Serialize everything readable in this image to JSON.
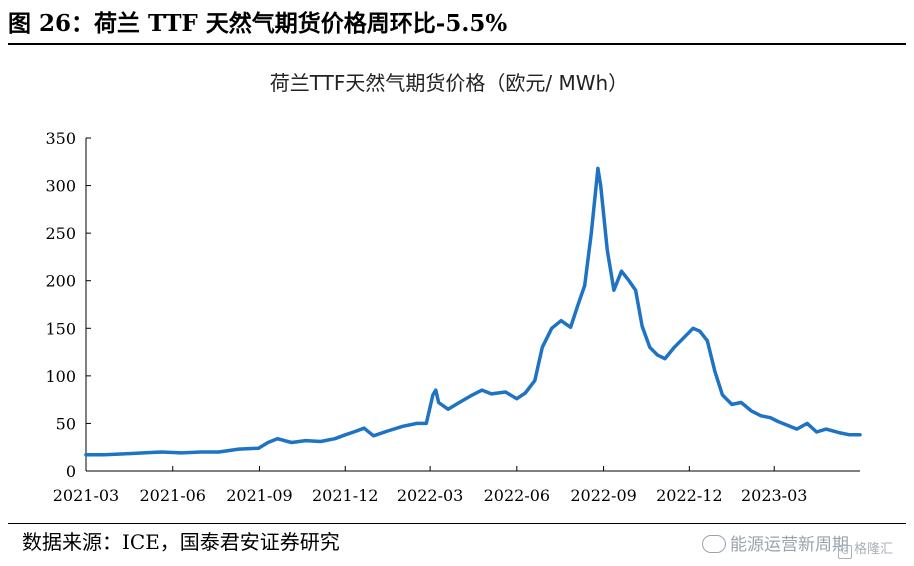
{
  "figure": {
    "title": "图 26：荷兰 TTF 天然气期货价格周环比-5.5%",
    "source": "数据来源：ICE，国泰君安证券研究",
    "watermark": "能源运营新周期",
    "watermark2": "格隆汇"
  },
  "colors": {
    "line": "#1f73c4",
    "axis": "#000000"
  },
  "chart_data": {
    "type": "line",
    "title": "荷兰TTF天然气期货价格（欧元/ MWh）",
    "xlabel": "",
    "ylabel": "",
    "ylim": [
      0,
      350
    ],
    "yticks": [
      0,
      50,
      100,
      150,
      200,
      250,
      300,
      350
    ],
    "xlim": [
      "2021-03-01",
      "2023-05-31"
    ],
    "xticks": [
      "2021-03",
      "2021-06",
      "2021-09",
      "2021-12",
      "2022-03",
      "2022-06",
      "2022-09",
      "2022-12",
      "2023-03"
    ],
    "grid": false,
    "legend": "none",
    "series": [
      {
        "x": [
          "2021-03-01",
          "2021-03-20",
          "2021-04-10",
          "2021-05-01",
          "2021-05-20",
          "2021-06-10",
          "2021-07-01",
          "2021-07-20",
          "2021-08-10",
          "2021-08-31",
          "2021-09-10",
          "2021-09-20",
          "2021-10-05",
          "2021-10-20",
          "2021-11-05",
          "2021-11-20",
          "2021-12-01",
          "2021-12-10",
          "2021-12-21",
          "2021-12-31",
          "2022-01-15",
          "2022-01-31",
          "2022-02-15",
          "2022-02-25",
          "2022-03-04",
          "2022-03-07",
          "2022-03-10",
          "2022-03-20",
          "2022-04-01",
          "2022-04-15",
          "2022-04-25",
          "2022-05-05",
          "2022-05-20",
          "2022-06-01",
          "2022-06-10",
          "2022-06-20",
          "2022-06-28",
          "2022-07-08",
          "2022-07-18",
          "2022-07-28",
          "2022-08-05",
          "2022-08-12",
          "2022-08-19",
          "2022-08-26",
          "2022-08-29",
          "2022-09-05",
          "2022-09-12",
          "2022-09-20",
          "2022-09-28",
          "2022-10-05",
          "2022-10-12",
          "2022-10-20",
          "2022-10-28",
          "2022-11-05",
          "2022-11-15",
          "2022-11-25",
          "2022-12-05",
          "2022-12-12",
          "2022-12-20",
          "2022-12-28",
          "2023-01-05",
          "2023-01-15",
          "2023-01-25",
          "2023-02-05",
          "2023-02-15",
          "2023-02-25",
          "2023-03-05",
          "2023-03-15",
          "2023-03-25",
          "2023-04-05",
          "2023-04-15",
          "2023-04-25",
          "2023-05-10",
          "2023-05-20",
          "2023-05-31"
        ],
        "values": [
          17,
          17,
          18,
          19,
          20,
          19,
          20,
          20,
          23,
          24,
          30,
          34,
          30,
          32,
          31,
          34,
          38,
          41,
          45,
          37,
          42,
          47,
          50,
          50,
          80,
          85,
          72,
          65,
          72,
          80,
          85,
          81,
          83,
          76,
          82,
          95,
          130,
          150,
          158,
          151,
          175,
          195,
          250,
          318,
          300,
          232,
          190,
          210,
          200,
          190,
          152,
          130,
          122,
          118,
          130,
          140,
          150,
          147,
          137,
          105,
          80,
          70,
          72,
          63,
          58,
          56,
          52,
          48,
          44,
          50,
          41,
          44,
          40,
          38,
          38
        ]
      }
    ]
  }
}
